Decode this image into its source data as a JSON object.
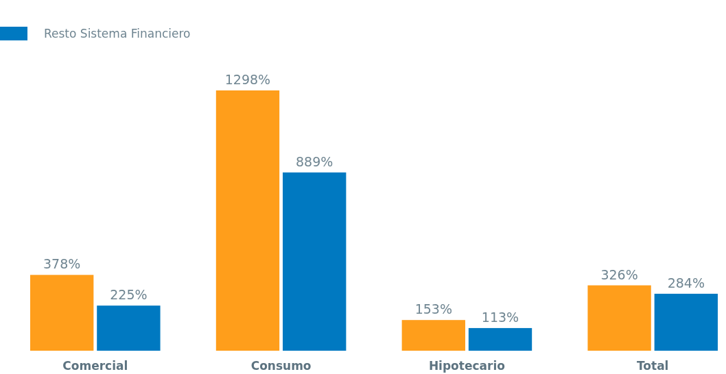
{
  "chart_data": {
    "type": "bar",
    "categories": [
      "Comercial",
      "Consumo",
      "Hipotecario",
      "Total"
    ],
    "series": [
      {
        "color": "#ff9e1b",
        "values": [
          378,
          1298,
          153,
          326
        ],
        "value_labels": [
          "378%",
          "1298%",
          "153%",
          "326%"
        ]
      },
      {
        "name": "Resto Sistema Financiero",
        "color": "#0079c1",
        "values": [
          225,
          889,
          113,
          284
        ],
        "value_labels": [
          "225%",
          "889%",
          "113%",
          "284%"
        ]
      }
    ],
    "legend": "top left"
  }
}
